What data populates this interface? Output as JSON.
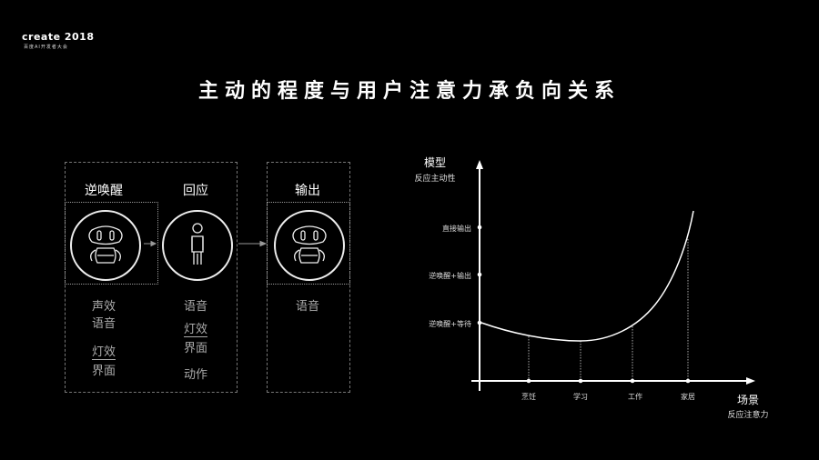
{
  "logo": {
    "text": "create 2018",
    "subtitle": "百度AI开发者大会"
  },
  "title": "主动的程度与用户注意力承负向关系",
  "flow": {
    "stages": [
      {
        "heading": "逆唤醒",
        "items": [
          "声效",
          "语音",
          "灯效",
          "界面"
        ]
      },
      {
        "heading": "回应",
        "items": [
          "语音",
          "灯效",
          "界面",
          "动作"
        ]
      },
      {
        "heading": "输出",
        "items": [
          "语音"
        ]
      }
    ]
  },
  "graph": {
    "y_title": "模型",
    "y_subtitle": "反应主动性",
    "x_title": "场景",
    "x_subtitle": "反应注意力",
    "y_levels": [
      "逆唤醒+等待",
      "逆唤醒+输出",
      "直接输出"
    ],
    "x_scenes": [
      "烹饪",
      "学习",
      "工作",
      "家居"
    ]
  }
}
